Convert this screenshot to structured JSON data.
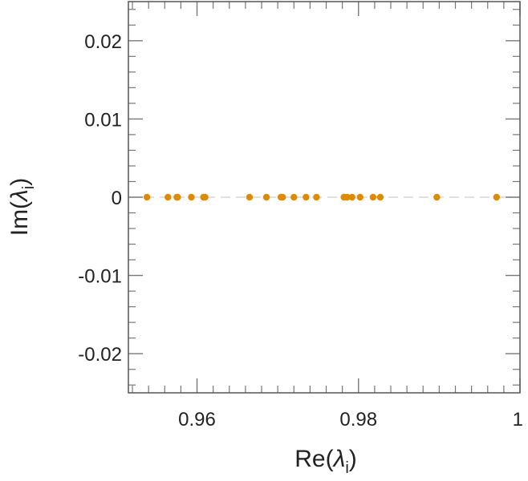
{
  "chart_data": {
    "type": "scatter",
    "title": "",
    "xlabel": "Re(λi)",
    "ylabel": "Im(λi)",
    "xlabel_parts": {
      "pre": "Re(",
      "sym": "λ",
      "sub": "i",
      "post": ")"
    },
    "ylabel_parts": {
      "pre": "Im(",
      "sym": "λ",
      "sub": "i",
      "post": ")"
    },
    "xlim": [
      0.9515,
      1.0
    ],
    "ylim": [
      -0.025,
      0.025
    ],
    "x_ticks": [
      {
        "value": 0.96,
        "label": "0.96"
      },
      {
        "value": 0.98,
        "label": "0.98"
      },
      {
        "value": 1.0,
        "label": "1"
      }
    ],
    "y_ticks": [
      {
        "value": 0.02,
        "label": "0.02"
      },
      {
        "value": 0.01,
        "label": "0.01"
      },
      {
        "value": 0.0,
        "label": "0"
      },
      {
        "value": -0.01,
        "label": "-0.01"
      },
      {
        "value": -0.02,
        "label": "-0.02"
      }
    ],
    "x_minor_step": 0.002,
    "y_minor_step": 0.002,
    "grid": false,
    "reference_line": {
      "y": 0,
      "style": "dashed",
      "color": "#e0e0e0"
    },
    "marker_color": "#e08a00",
    "series": [
      {
        "points": [
          {
            "x": 0.9538,
            "y": 0
          },
          {
            "x": 0.9564,
            "y": 0
          },
          {
            "x": 0.9575,
            "y": 0
          },
          {
            "x": 0.9576,
            "y": 0
          },
          {
            "x": 0.9593,
            "y": 0
          },
          {
            "x": 0.9608,
            "y": 0
          },
          {
            "x": 0.961,
            "y": 0
          },
          {
            "x": 0.9665,
            "y": 0
          },
          {
            "x": 0.9686,
            "y": 0
          },
          {
            "x": 0.9704,
            "y": 0
          },
          {
            "x": 0.9706,
            "y": 0
          },
          {
            "x": 0.972,
            "y": 0
          },
          {
            "x": 0.9735,
            "y": 0
          },
          {
            "x": 0.9748,
            "y": 0
          },
          {
            "x": 0.9782,
            "y": 0
          },
          {
            "x": 0.9786,
            "y": 0
          },
          {
            "x": 0.9792,
            "y": 0
          },
          {
            "x": 0.9802,
            "y": 0
          },
          {
            "x": 0.9818,
            "y": 0
          },
          {
            "x": 0.9827,
            "y": 0
          },
          {
            "x": 0.9897,
            "y": 0
          },
          {
            "x": 0.9971,
            "y": 0
          }
        ]
      }
    ]
  }
}
